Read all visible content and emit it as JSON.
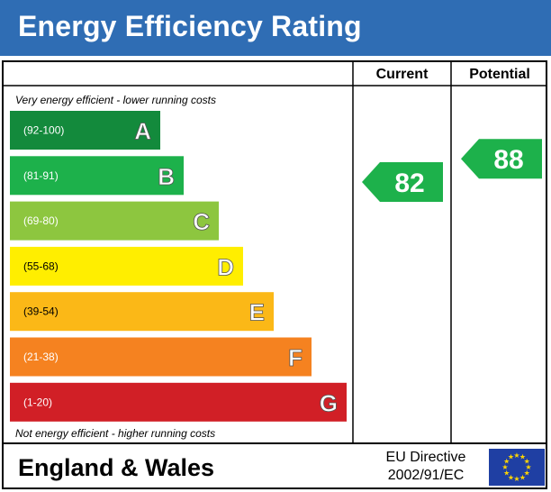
{
  "header": {
    "title": "Energy Efficiency Rating"
  },
  "columns": {
    "current": "Current",
    "potential": "Potential"
  },
  "top_note": "Very energy efficient - lower running costs",
  "bottom_note": "Not energy efficient - higher running costs",
  "footer": {
    "region": "England & Wales",
    "directive_line1": "EU Directive",
    "directive_line2": "2002/91/EC"
  },
  "colors": {
    "header_bg": "#2f6db4",
    "eu_flag": "#1f3fa3",
    "eu_stars": "#ffd500"
  },
  "chart_data": {
    "type": "bar",
    "title": "Energy Efficiency Rating",
    "bands": [
      {
        "letter": "A",
        "range": "(92-100)",
        "min": 92,
        "max": 100,
        "color": "#138a3c"
      },
      {
        "letter": "B",
        "range": "(81-91)",
        "min": 81,
        "max": 91,
        "color": "#1db14b"
      },
      {
        "letter": "C",
        "range": "(69-80)",
        "min": 69,
        "max": 80,
        "color": "#8dc63f"
      },
      {
        "letter": "D",
        "range": "(55-68)",
        "min": 55,
        "max": 68,
        "color": "#ffee00"
      },
      {
        "letter": "E",
        "range": "(39-54)",
        "min": 39,
        "max": 54,
        "color": "#fbb817"
      },
      {
        "letter": "F",
        "range": "(21-38)",
        "min": 21,
        "max": 38,
        "color": "#f58220"
      },
      {
        "letter": "G",
        "range": "(1-20)",
        "min": 1,
        "max": 20,
        "color": "#d11f26"
      }
    ],
    "current": {
      "value": 82,
      "band": "B",
      "color": "#1db14b"
    },
    "potential": {
      "value": 88,
      "band": "B",
      "color": "#1db14b"
    }
  }
}
